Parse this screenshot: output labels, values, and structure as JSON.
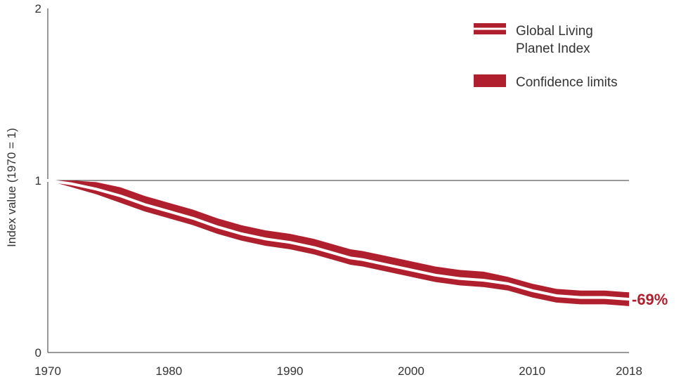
{
  "colors": {
    "band": "#b01f2e",
    "index_line": "#ffffff",
    "axis": "#333333",
    "text": "#333333"
  },
  "chart_data": {
    "type": "line",
    "ylabel": "Index value (1970 = 1)",
    "xlim": [
      1970,
      2018
    ],
    "ylim": [
      0,
      2
    ],
    "x_ticks": [
      "1970",
      "1980",
      "1990",
      "2000",
      "2010",
      "2018"
    ],
    "y_ticks": [
      "0",
      "1",
      "2"
    ],
    "reference_line": 1,
    "legend": {
      "position": "top-right",
      "entries": [
        {
          "lines": [
            "Global Living",
            "Planet Index"
          ],
          "style": "double-line"
        },
        {
          "lines": [
            "Confidence limits"
          ],
          "style": "band"
        }
      ]
    },
    "end_label": "-69%",
    "series": [
      {
        "name": "Global Living Planet Index",
        "x": [
          1970,
          1972,
          1974,
          1976,
          1978,
          1980,
          1982,
          1984,
          1986,
          1988,
          1990,
          1992,
          1994,
          1995,
          1996,
          1998,
          2000,
          2002,
          2004,
          2006,
          2008,
          2010,
          2012,
          2014,
          2016,
          2018
        ],
        "y": [
          1.0,
          0.98,
          0.95,
          0.91,
          0.86,
          0.82,
          0.78,
          0.73,
          0.69,
          0.66,
          0.64,
          0.61,
          0.57,
          0.55,
          0.54,
          0.51,
          0.48,
          0.45,
          0.43,
          0.42,
          0.4,
          0.36,
          0.33,
          0.32,
          0.32,
          0.31
        ],
        "lower": [
          1.0,
          0.96,
          0.92,
          0.87,
          0.82,
          0.78,
          0.74,
          0.69,
          0.65,
          0.62,
          0.6,
          0.57,
          0.53,
          0.51,
          0.5,
          0.47,
          0.44,
          0.41,
          0.39,
          0.38,
          0.36,
          0.32,
          0.29,
          0.28,
          0.28,
          0.27
        ],
        "upper": [
          1.0,
          1.0,
          0.99,
          0.96,
          0.91,
          0.87,
          0.83,
          0.78,
          0.74,
          0.71,
          0.69,
          0.66,
          0.62,
          0.6,
          0.59,
          0.56,
          0.53,
          0.5,
          0.48,
          0.47,
          0.44,
          0.4,
          0.37,
          0.36,
          0.36,
          0.35
        ]
      }
    ]
  }
}
